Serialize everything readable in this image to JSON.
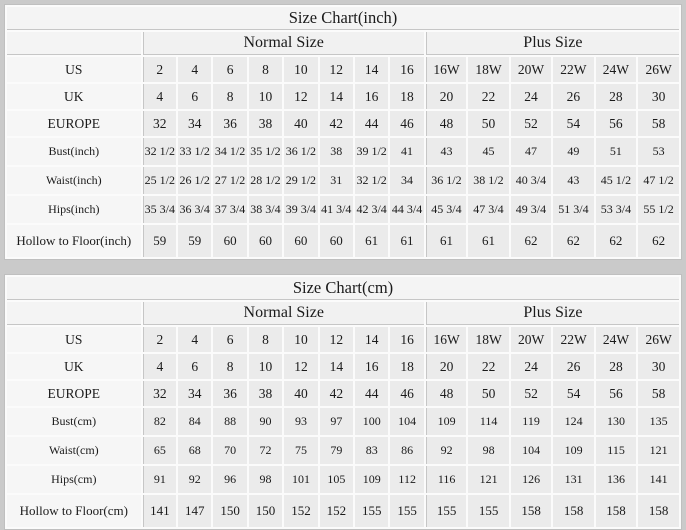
{
  "colors": {
    "page_background": "#cacaca",
    "table_gap_lines": "#fbfbfb",
    "title_row_bg": "#f4f4f4",
    "group_header_bg": "#f1f1f1",
    "label_cell_bg": "#f6f6f6",
    "data_cell_bg": "#ebebeb",
    "divider_line": "#c6c6c6",
    "text": "#1b1b1b"
  },
  "chart_data": [
    {
      "type": "table",
      "title": "Size Chart(inch)",
      "column_groups": [
        {
          "label": "",
          "span": 1
        },
        {
          "label": "Normal Size",
          "span": 8
        },
        {
          "label": "Plus Size",
          "span": 6
        }
      ],
      "rows": [
        {
          "label": "US",
          "kind": "size",
          "values": [
            "2",
            "4",
            "6",
            "8",
            "10",
            "12",
            "14",
            "16",
            "16W",
            "18W",
            "20W",
            "22W",
            "24W",
            "26W"
          ]
        },
        {
          "label": "UK",
          "kind": "size",
          "values": [
            "4",
            "6",
            "8",
            "10",
            "12",
            "14",
            "16",
            "18",
            "20",
            "22",
            "24",
            "26",
            "28",
            "30"
          ]
        },
        {
          "label": "EUROPE",
          "kind": "size",
          "values": [
            "32",
            "34",
            "36",
            "38",
            "40",
            "42",
            "44",
            "46",
            "48",
            "50",
            "52",
            "54",
            "56",
            "58"
          ]
        },
        {
          "label": "Bust(inch)",
          "kind": "measure",
          "values": [
            "32 1/2",
            "33 1/2",
            "34 1/2",
            "35 1/2",
            "36 1/2",
            "38",
            "39 1/2",
            "41",
            "43",
            "45",
            "47",
            "49",
            "51",
            "53"
          ]
        },
        {
          "label": "Waist(inch)",
          "kind": "measure",
          "values": [
            "25 1/2",
            "26 1/2",
            "27 1/2",
            "28 1/2",
            "29 1/2",
            "31",
            "32 1/2",
            "34",
            "36 1/2",
            "38 1/2",
            "40 3/4",
            "43",
            "45 1/2",
            "47 1/2"
          ]
        },
        {
          "label": "Hips(inch)",
          "kind": "measure",
          "values": [
            "35 3/4",
            "36 3/4",
            "37 3/4",
            "38 3/4",
            "39 3/4",
            "41 3/4",
            "42 3/4",
            "44 3/4",
            "45 3/4",
            "47 3/4",
            "49 3/4",
            "51 3/4",
            "53 3/4",
            "55 1/2"
          ]
        },
        {
          "label": "Hollow to Floor(inch)",
          "kind": "hollow",
          "values": [
            "59",
            "59",
            "60",
            "60",
            "60",
            "60",
            "61",
            "61",
            "61",
            "61",
            "62",
            "62",
            "62",
            "62"
          ]
        }
      ]
    },
    {
      "type": "table",
      "title": "Size Chart(cm)",
      "column_groups": [
        {
          "label": "",
          "span": 1
        },
        {
          "label": "Normal Size",
          "span": 8
        },
        {
          "label": "Plus Size",
          "span": 6
        }
      ],
      "rows": [
        {
          "label": "US",
          "kind": "size",
          "values": [
            "2",
            "4",
            "6",
            "8",
            "10",
            "12",
            "14",
            "16",
            "16W",
            "18W",
            "20W",
            "22W",
            "24W",
            "26W"
          ]
        },
        {
          "label": "UK",
          "kind": "size",
          "values": [
            "4",
            "6",
            "8",
            "10",
            "12",
            "14",
            "16",
            "18",
            "20",
            "22",
            "24",
            "26",
            "28",
            "30"
          ]
        },
        {
          "label": "EUROPE",
          "kind": "size",
          "values": [
            "32",
            "34",
            "36",
            "38",
            "40",
            "42",
            "44",
            "46",
            "48",
            "50",
            "52",
            "54",
            "56",
            "58"
          ]
        },
        {
          "label": "Bust(cm)",
          "kind": "measure",
          "values": [
            "82",
            "84",
            "88",
            "90",
            "93",
            "97",
            "100",
            "104",
            "109",
            "114",
            "119",
            "124",
            "130",
            "135"
          ]
        },
        {
          "label": "Waist(cm)",
          "kind": "measure",
          "values": [
            "65",
            "68",
            "70",
            "72",
            "75",
            "79",
            "83",
            "86",
            "92",
            "98",
            "104",
            "109",
            "115",
            "121"
          ]
        },
        {
          "label": "Hips(cm)",
          "kind": "measure",
          "values": [
            "91",
            "92",
            "96",
            "98",
            "101",
            "105",
            "109",
            "112",
            "116",
            "121",
            "126",
            "131",
            "136",
            "141"
          ]
        },
        {
          "label": "Hollow to Floor(cm)",
          "kind": "hollow",
          "values": [
            "141",
            "147",
            "150",
            "150",
            "152",
            "152",
            "155",
            "155",
            "155",
            "155",
            "158",
            "158",
            "158",
            "158"
          ]
        }
      ]
    }
  ]
}
